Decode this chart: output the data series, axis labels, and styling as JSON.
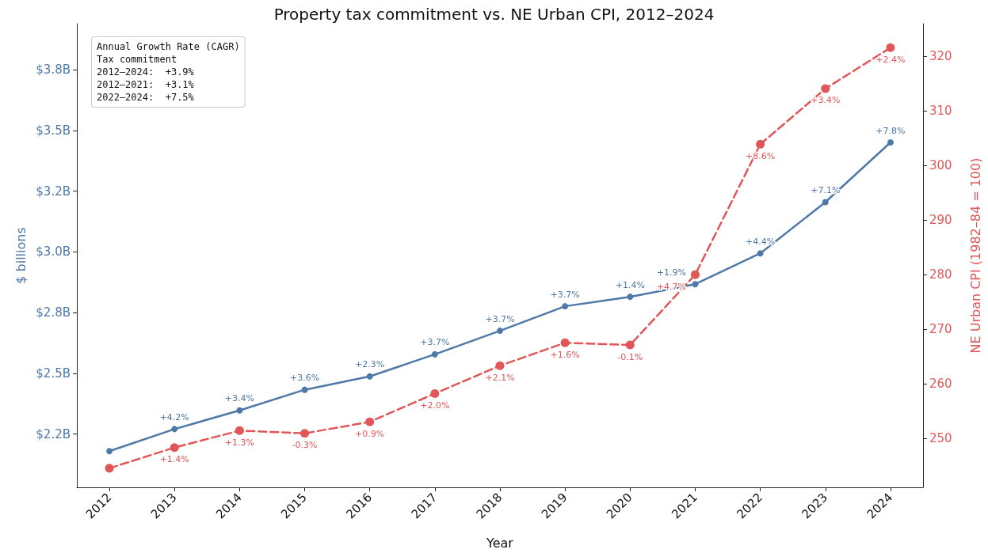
{
  "chart_data": {
    "type": "line",
    "title": "Property tax commitment vs. NE Urban CPI, 2012–2024",
    "xlabel": "Year",
    "ylabel": "$ billions",
    "y2label": "NE Urban CPI (1982–84 = 100)",
    "categories": [
      "2012",
      "2013",
      "2014",
      "2015",
      "2016",
      "2017",
      "2018",
      "2019",
      "2020",
      "2021",
      "2022",
      "2023",
      "2024"
    ],
    "series": [
      {
        "color": "#4e79a7",
        "line_style": "solid",
        "values": [
          2.179,
          2.27,
          2.347,
          2.432,
          2.487,
          2.578,
          2.675,
          2.776,
          2.815,
          2.867,
          2.994,
          3.205,
          3.451
        ]
      },
      {
        "color": "#e15759",
        "line_style": "dashed",
        "axis": "y2",
        "values": [
          244.5,
          248.3,
          251.4,
          250.9,
          253.0,
          258.2,
          263.3,
          267.5,
          267.1,
          280.0,
          303.9,
          314.1,
          321.6
        ]
      }
    ],
    "ylim": [
      2.03,
      3.94
    ],
    "yticks": [
      {
        "value": 2.25,
        "label": "$2.2B"
      },
      {
        "value": 2.5,
        "label": "$2.5B"
      },
      {
        "value": 2.75,
        "label": "$2.8B"
      },
      {
        "value": 3.0,
        "label": "$3.0B"
      },
      {
        "value": 3.25,
        "label": "$3.2B"
      },
      {
        "value": 3.5,
        "label": "$3.5B"
      },
      {
        "value": 3.75,
        "label": "$3.8B"
      }
    ],
    "y2lim": [
      241,
      326
    ],
    "y2ticks": [
      250,
      260,
      270,
      280,
      290,
      300,
      310,
      320
    ],
    "annotations": [
      "Annual Growth Rate (CAGR)\nTax commitment\n2012–2024:  +3.9%\n2012–2021:  +3.1%\n2022–2024:  +7.5%",
      {
        "text": "+4.2%",
        "x": "2013",
        "y": 2.27
      },
      {
        "text": "+3.4%",
        "x": "2014",
        "y": 2.347
      },
      {
        "text": "+3.6%",
        "x": "2015",
        "y": 2.432
      },
      {
        "text": "+2.3%",
        "x": "2016",
        "y": 2.487
      },
      {
        "text": "+3.7%",
        "x": "2017",
        "y": 2.578
      },
      {
        "text": "+3.7%",
        "x": "2018",
        "y": 2.675
      },
      {
        "text": "+3.7%",
        "x": "2019",
        "y": 2.776
      },
      {
        "text": "+1.4%",
        "x": "2020",
        "y": 2.815
      },
      {
        "text": "+1.9%",
        "x": "2021",
        "y": 2.867
      },
      {
        "text": "+4.4%",
        "x": "2022",
        "y": 2.994
      },
      {
        "text": "+7.1%",
        "x": "2023",
        "y": 3.205
      },
      {
        "text": "+7.8%",
        "x": "2024",
        "y": 3.451
      },
      {
        "text": "+1.4%",
        "x": "2013",
        "y": 2.194
      },
      {
        "text": "+1.3%",
        "x": "2014",
        "y": 2.264
      },
      {
        "text": "-0.3%",
        "x": "2015",
        "y": 2.252
      },
      {
        "text": "+0.9%",
        "x": "2016",
        "y": 2.3
      },
      {
        "text": "+2.0%",
        "x": "2017",
        "y": 2.416
      },
      {
        "text": "+2.1%",
        "x": "2018",
        "y": 2.531
      },
      {
        "text": "+1.6%",
        "x": "2019",
        "y": 2.625
      },
      {
        "text": "-0.1%",
        "x": "2020",
        "y": 2.616
      },
      {
        "text": "+4.7%",
        "x": "2021",
        "y": 2.906
      },
      {
        "text": "+8.6%",
        "x": "2022",
        "y": 3.443
      },
      {
        "text": "+3.4%",
        "x": "2023",
        "y": 3.673
      },
      {
        "text": "+2.4%",
        "x": "2024",
        "y": 3.841
      }
    ],
    "marker": "circle",
    "grid": false,
    "legend": false
  }
}
